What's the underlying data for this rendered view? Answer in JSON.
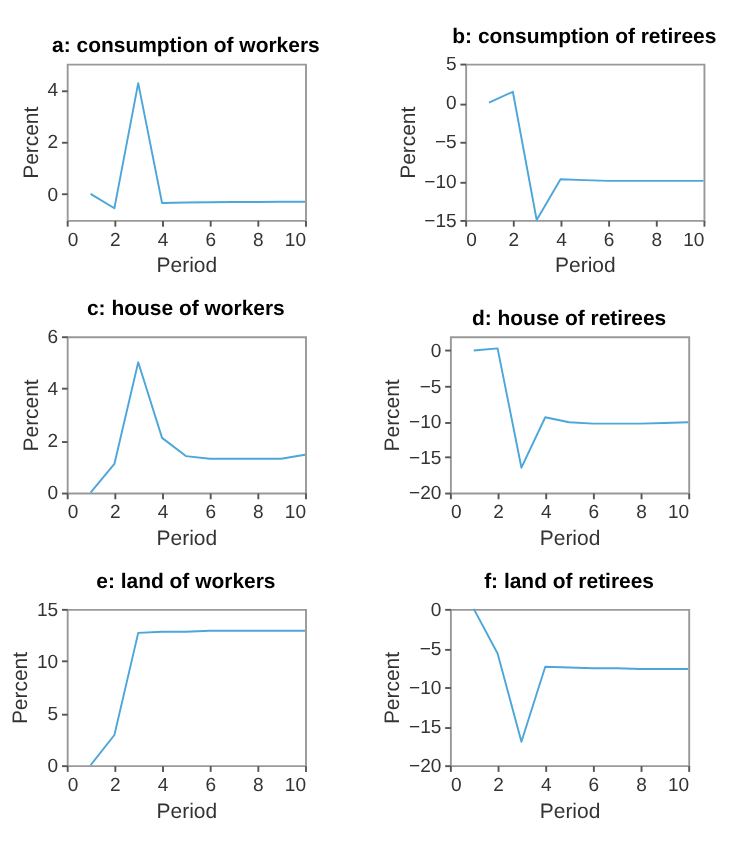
{
  "chart_data": [
    {
      "type": "line",
      "title": "a: consumption of workers",
      "xlabel": "Period",
      "ylabel": "Percent",
      "x": [
        1,
        2,
        3,
        4,
        5,
        6,
        7,
        8,
        9,
        10
      ],
      "series": [
        {
          "color": "#4da6d9",
          "values": [
            0,
            -0.55,
            4.25,
            -0.35,
            -0.33,
            -0.32,
            -0.31,
            -0.31,
            -0.3,
            -0.3
          ]
        }
      ],
      "xlim": [
        0,
        10
      ],
      "xticks": [
        0,
        2,
        4,
        6,
        8,
        10
      ],
      "ylim": [
        -1,
        5
      ],
      "yticks": [
        0,
        2,
        4
      ],
      "grid": false,
      "line_style": "solid"
    },
    {
      "type": "line",
      "title": "b: consumption of retirees",
      "xlabel": "Period",
      "ylabel": "Percent",
      "x": [
        1,
        2,
        3,
        4,
        5,
        6,
        7,
        8,
        9,
        10
      ],
      "series": [
        {
          "color": "#4da6d9",
          "values": [
            0,
            1.4,
            -15,
            -9.8,
            -9.9,
            -10,
            -10,
            -10,
            -10,
            -10
          ]
        }
      ],
      "xlim": [
        0,
        10
      ],
      "xticks": [
        0,
        2,
        4,
        6,
        8,
        10
      ],
      "ylim": [
        -15,
        5
      ],
      "yticks": [
        -15,
        -10,
        -5,
        0,
        5
      ],
      "grid": false,
      "line_style": "solid"
    },
    {
      "type": "line",
      "title": "c: house of workers",
      "xlabel": "Period",
      "ylabel": "Percent",
      "x": [
        1,
        2,
        3,
        4,
        5,
        6,
        7,
        8,
        9,
        10
      ],
      "series": [
        {
          "color": "#4da6d9",
          "values": [
            0,
            1.1,
            5,
            2.1,
            1.4,
            1.3,
            1.3,
            1.3,
            1.3,
            1.45
          ]
        }
      ],
      "xlim": [
        0,
        10
      ],
      "xticks": [
        0,
        2,
        4,
        6,
        8,
        10
      ],
      "ylim": [
        0,
        6
      ],
      "yticks": [
        0,
        2,
        4,
        6
      ],
      "grid": false,
      "line_style": "solid"
    },
    {
      "type": "line",
      "title": "d: house of retirees",
      "xlabel": "Period",
      "ylabel": "Percent",
      "x": [
        1,
        2,
        3,
        4,
        5,
        6,
        7,
        8,
        9,
        10
      ],
      "series": [
        {
          "color": "#4da6d9",
          "values": [
            0,
            0.3,
            -16.5,
            -9.4,
            -10.1,
            -10.3,
            -10.3,
            -10.3,
            -10.2,
            -10.1
          ]
        }
      ],
      "xlim": [
        0,
        10
      ],
      "xticks": [
        0,
        2,
        4,
        6,
        8,
        10
      ],
      "ylim": [
        -20,
        2
      ],
      "yticks": [
        -20,
        -15,
        -10,
        -5,
        0
      ],
      "grid": false,
      "line_style": "solid"
    },
    {
      "type": "line",
      "title": "e: land of workers",
      "xlabel": "Period",
      "ylabel": "Percent",
      "x": [
        1,
        2,
        3,
        4,
        5,
        6,
        7,
        8,
        9,
        10
      ],
      "series": [
        {
          "color": "#4da6d9",
          "values": [
            0,
            2.9,
            12.7,
            12.8,
            12.8,
            12.9,
            12.9,
            12.9,
            12.9,
            12.9
          ]
        }
      ],
      "xlim": [
        0,
        10
      ],
      "xticks": [
        0,
        2,
        4,
        6,
        8,
        10
      ],
      "ylim": [
        0,
        15
      ],
      "yticks": [
        0,
        5,
        10,
        15
      ],
      "grid": false,
      "line_style": "solid"
    },
    {
      "type": "line",
      "title": "f: land of retirees",
      "xlabel": "Period",
      "ylabel": "Percent",
      "x": [
        1,
        2,
        3,
        4,
        5,
        6,
        7,
        8,
        9,
        10
      ],
      "series": [
        {
          "color": "#4da6d9",
          "values": [
            0,
            -5.7,
            -17,
            -7.4,
            -7.5,
            -7.6,
            -7.6,
            -7.7,
            -7.7,
            -7.7
          ]
        }
      ],
      "xlim": [
        0,
        10
      ],
      "xticks": [
        0,
        2,
        4,
        6,
        8,
        10
      ],
      "ylim": [
        -20,
        0
      ],
      "yticks": [
        -20,
        -15,
        -10,
        -5,
        0
      ],
      "grid": false,
      "line_style": "solid"
    }
  ]
}
